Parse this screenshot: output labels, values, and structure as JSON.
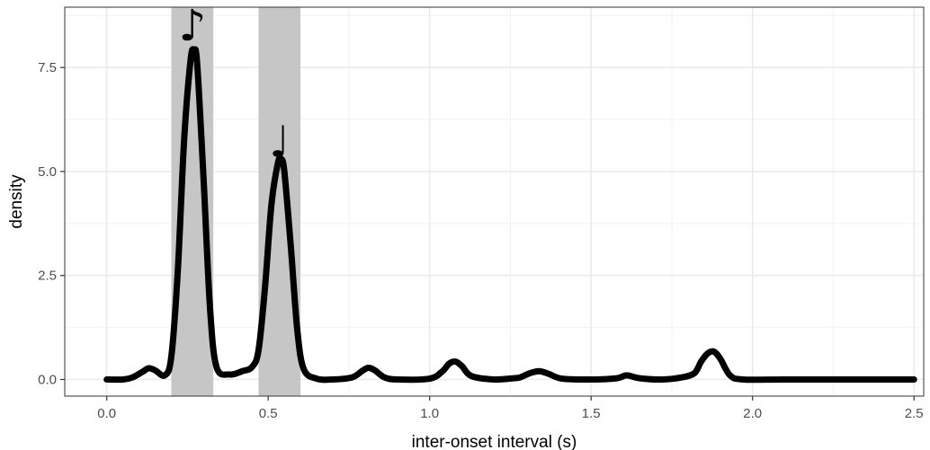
{
  "chart_data": {
    "type": "line",
    "title": "",
    "xlabel": "inter-onset interval (s)",
    "ylabel": "density",
    "xlim": [
      -0.13,
      2.53
    ],
    "ylim": [
      -0.4,
      8.95
    ],
    "x_ticks": [
      0.0,
      0.5,
      1.0,
      1.5,
      2.0,
      2.5
    ],
    "x_tick_labels": [
      "0.0",
      "0.5",
      "1.0",
      "1.5",
      "2.0",
      "2.5"
    ],
    "y_ticks": [
      0.0,
      2.5,
      5.0,
      7.5
    ],
    "y_tick_labels": [
      "0.0",
      "2.5",
      "5.0",
      "7.5"
    ],
    "grid": true,
    "legend": "none",
    "theme": "black-and-white",
    "line_color": "#000000",
    "shade_color": "#c6c6c6",
    "shaded_regions": [
      {
        "x0": 0.2,
        "x1": 0.33,
        "annotation": "eighth-note",
        "symbol": "♪",
        "label_y": 8.5
      },
      {
        "x0": 0.47,
        "x1": 0.6,
        "annotation": "quarter-note",
        "symbol": "♩",
        "label_y": 5.7
      }
    ],
    "series": [
      {
        "x": [
          0.0,
          0.05,
          0.08,
          0.11,
          0.13,
          0.15,
          0.18,
          0.2,
          0.22,
          0.24,
          0.26,
          0.27,
          0.28,
          0.3,
          0.32,
          0.34,
          0.38,
          0.42,
          0.45,
          0.47,
          0.49,
          0.51,
          0.53,
          0.54,
          0.55,
          0.57,
          0.59,
          0.61,
          0.65,
          0.7,
          0.76,
          0.79,
          0.81,
          0.83,
          0.86,
          0.9,
          1.0,
          1.04,
          1.06,
          1.08,
          1.1,
          1.13,
          1.2,
          1.26,
          1.28,
          1.31,
          1.34,
          1.37,
          1.41,
          1.5,
          1.58,
          1.61,
          1.65,
          1.72,
          1.78,
          1.82,
          1.84,
          1.86,
          1.88,
          1.9,
          1.93,
          1.97,
          2.1,
          2.3,
          2.5
        ],
        "y": [
          0.0,
          0.0,
          0.05,
          0.18,
          0.27,
          0.22,
          0.1,
          0.55,
          2.6,
          5.8,
          7.7,
          7.9,
          7.6,
          4.8,
          1.7,
          0.3,
          0.12,
          0.2,
          0.3,
          0.7,
          2.2,
          4.2,
          5.2,
          5.3,
          5.0,
          3.2,
          1.2,
          0.25,
          0.02,
          0.0,
          0.05,
          0.2,
          0.28,
          0.22,
          0.05,
          0.0,
          0.02,
          0.2,
          0.38,
          0.43,
          0.32,
          0.08,
          0.0,
          0.03,
          0.05,
          0.15,
          0.2,
          0.13,
          0.02,
          0.0,
          0.03,
          0.1,
          0.03,
          0.0,
          0.05,
          0.15,
          0.42,
          0.62,
          0.67,
          0.5,
          0.1,
          0.0,
          0.0,
          0.0,
          0.0
        ]
      }
    ]
  }
}
